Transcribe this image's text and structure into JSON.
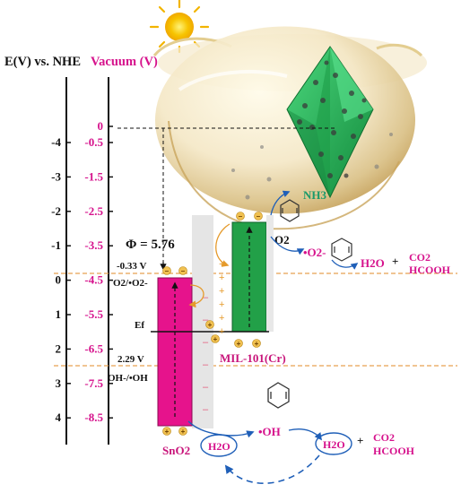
{
  "axes": {
    "nhe_title": "E(V) vs. NHE",
    "vacuum_title": "Vacuum (V)",
    "nhe_ticks": [
      "-4",
      "-3",
      "-2",
      "-1",
      "0",
      "1",
      "2",
      "3",
      "4"
    ],
    "vacuum_ticks": [
      "0",
      "-0.5",
      "-1.5",
      "-2.5",
      "-3.5",
      "-4.5",
      "-5.5",
      "-6.5",
      "-7.5",
      "-8.5"
    ]
  },
  "labels": {
    "phi": "Φ = 5.76",
    "o2_potential": "-0.33 V",
    "o2_couple": "O2/•O2-",
    "fermi": "Ef",
    "oh_potential": "2.29 V",
    "oh_couple": "OH-/•OH",
    "sno2": "SnO2",
    "mil": "MIL-101(Cr)",
    "nh3": "NH3",
    "o2": "O2",
    "superoxide": "•O2-",
    "water_right": "H2O",
    "plus_top": "+",
    "co2_top": "CO2",
    "hcooh_top": "HCOOH",
    "water_bottom": "H2O",
    "oh_radical": "•OH",
    "water_bottom_right": "H2O",
    "plus_bottom": "+",
    "co2_bottom": "CO2",
    "hcooh_bottom": "HCOOH"
  },
  "colors": {
    "pink_text": "#d6128c",
    "teal_text": "#1a9a6a",
    "sno2_band": "#e6138c",
    "mil_band": "#22a048",
    "arrow_blue": "#1f5fb8",
    "dashed_orange": "#e7a050",
    "charge_plus": "#e59a2b",
    "charge_minus": "#e55a7a",
    "mil_text": "#c8147a",
    "sun": "#f7c400"
  }
}
